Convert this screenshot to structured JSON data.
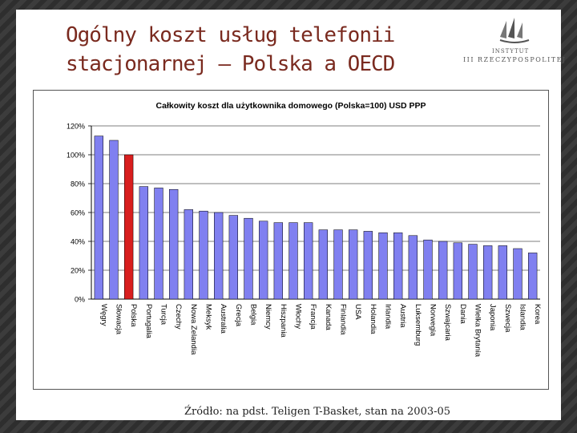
{
  "slide": {
    "title_line1": "Ogólny koszt usług telefonii",
    "title_line2": "stacjonarnej – Polska a OECD",
    "logo_line1": "INSTYTUT",
    "logo_line2": "III RZECZYPOSPOLITEJ",
    "source": "Źródło: na pdst. Teligen T-Basket, stan na 2003-05"
  },
  "colors": {
    "bar": "#8080f0",
    "highlight": "#d81e1e",
    "title": "#7a2a1f"
  },
  "chart_data": {
    "type": "bar",
    "title": "Całkowity koszt dla użytkownika domowego (Polska=100) USD PPP",
    "xlabel": "",
    "ylabel": "",
    "ylim": [
      0,
      120
    ],
    "yticks": [
      "0%",
      "20%",
      "40%",
      "60%",
      "80%",
      "100%",
      "120%"
    ],
    "grid": true,
    "highlight": "Polska",
    "categories": [
      "Węgry",
      "Słowacja",
      "Polska",
      "Portugalia",
      "Turcja",
      "Czechy",
      "Nowa Zelandia",
      "Meksyk",
      "Australia",
      "Grecja",
      "Belgia",
      "Niemcy",
      "Hiszpania",
      "Włochy",
      "Francja",
      "Kanada",
      "Finlandia",
      "USA",
      "Holandia",
      "Irlandia",
      "Austria",
      "Luksemburg",
      "Norwegia",
      "Szwajcaria",
      "Dania",
      "Wielka Brytania",
      "Japonia",
      "Szwecja",
      "Islandia",
      "Korea"
    ],
    "values": [
      113,
      110,
      100,
      78,
      77,
      76,
      62,
      61,
      60,
      58,
      56,
      54,
      53,
      53,
      53,
      48,
      48,
      48,
      47,
      46,
      46,
      44,
      41,
      40,
      39,
      38,
      37,
      37,
      35,
      32
    ]
  }
}
